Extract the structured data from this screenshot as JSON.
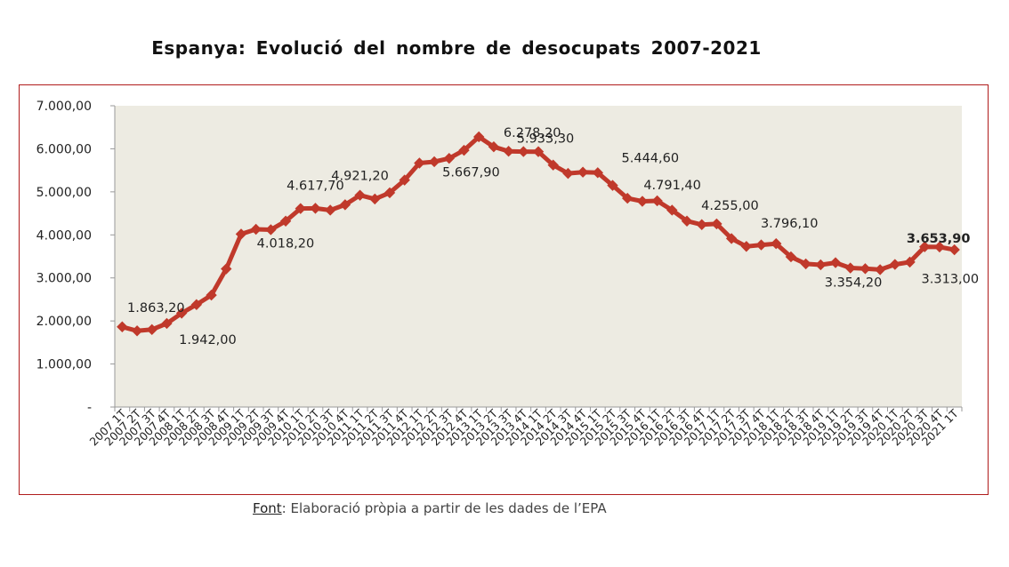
{
  "title": "Espanya: Evolució del nombre de desocupats 2007-2021",
  "source": {
    "lead": "Font",
    "text": ": Elaboració pròpia a partir de les dades de l’EPA"
  },
  "colors": {
    "line": "#c0392b",
    "plot_bg": "#edebe2",
    "frame": "#b01c1c",
    "axis": "#999999"
  },
  "chart_data": {
    "type": "line",
    "title": "Espanya: Evolució del nombre de desocupats 2007-2021",
    "xlabel": "",
    "ylabel": "",
    "ylim": [
      0,
      7000
    ],
    "y_ticks": [
      {
        "value": 0,
        "label": "-"
      },
      {
        "value": 1000,
        "label": "1.000,00"
      },
      {
        "value": 2000,
        "label": "2.000,00"
      },
      {
        "value": 3000,
        "label": "3.000,00"
      },
      {
        "value": 4000,
        "label": "4.000,00"
      },
      {
        "value": 5000,
        "label": "5.000,00"
      },
      {
        "value": 6000,
        "label": "6.000,00"
      },
      {
        "value": 7000,
        "label": "7.000,00"
      }
    ],
    "grid": false,
    "legend": "none",
    "categories": [
      "2007 1T",
      "2007 2T",
      "2007 3T",
      "2007 4T",
      "2008 1T",
      "2008 2T",
      "2008 3T",
      "2008 4T",
      "2009 1T",
      "2009 2T",
      "2009 3T",
      "2009 4T",
      "2010 1T",
      "2010 2T",
      "2010 3T",
      "2010 4T",
      "2011 1T",
      "2011 2T",
      "2011 3T",
      "2011 4T",
      "2012 1T",
      "2012 2T",
      "2012 3T",
      "2012 4T",
      "2013 1T",
      "2013 2T",
      "2013 3T",
      "2013 4T",
      "2014 1T",
      "2014 2T",
      "2014 3T",
      "2014 4T",
      "2015 1T",
      "2015 2T",
      "2015 3T",
      "2015 4T",
      "2016 1T",
      "2016 2T",
      "2016 3T",
      "2016 4T",
      "2017 1T",
      "2017 2T",
      "2017 3T",
      "2017 4T",
      "2018 1T",
      "2018 2T",
      "2018 3T",
      "2018 4T",
      "2019 1T",
      "2019 2T",
      "2019 3T",
      "2019 4T",
      "2020 1T",
      "2020 2T",
      "2020 3T",
      "2020 4T",
      "2021 1T"
    ],
    "values": [
      1863.2,
      1770,
      1800,
      1942,
      2180,
      2380,
      2600,
      3210,
      4018.2,
      4130,
      4120,
      4320,
      4612,
      4617.7,
      4574.7,
      4700,
      4921.2,
      4833.7,
      4978.3,
      5273.6,
      5667.9,
      5700,
      5778,
      5965,
      6278.2,
      6047,
      5943,
      5935,
      5933.3,
      5622.9,
      5427.7,
      5457.7,
      5444.6,
      5149,
      4850.8,
      4779.5,
      4791.4,
      4574.7,
      4320.8,
      4237.8,
      4255,
      3914.3,
      3731.7,
      3766.7,
      3796.1,
      3490.3,
      3326,
      3304.3,
      3354.2,
      3230.6,
      3214.4,
      3191.9,
      3313,
      3368,
      3722.9,
      3719.8,
      3653.9
    ],
    "data_labels": [
      {
        "index": 0,
        "text": "1.863,20"
      },
      {
        "index": 3,
        "text": "1.942,00"
      },
      {
        "index": 8,
        "text": "4.018,20"
      },
      {
        "index": 13,
        "text": "4.617,70"
      },
      {
        "index": 16,
        "text": "4.921,20"
      },
      {
        "index": 20,
        "text": "5.667,90"
      },
      {
        "index": 24,
        "text": "6.278,20"
      },
      {
        "index": 28,
        "text": "5.933,30"
      },
      {
        "index": 32,
        "text": "5.444,60"
      },
      {
        "index": 36,
        "text": "4.791,40"
      },
      {
        "index": 40,
        "text": "4.255,00"
      },
      {
        "index": 44,
        "text": "3.796,10"
      },
      {
        "index": 48,
        "text": "3.354,20"
      },
      {
        "index": 52,
        "text": "3.313,00"
      },
      {
        "index": 56,
        "text": "3.653,90"
      }
    ]
  }
}
